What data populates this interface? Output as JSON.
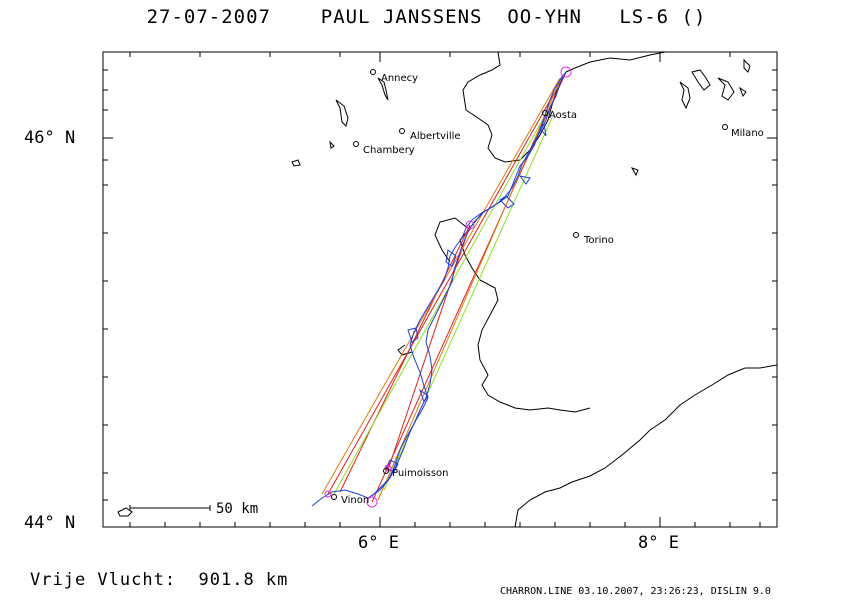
{
  "title": {
    "date": "27-07-2007",
    "pilot": "PAUL JANSSENS",
    "registration": "OO-YHN",
    "glider": "LS-6 ()"
  },
  "axes": {
    "lat_labels": [
      "46° N",
      "44° N"
    ],
    "lon_labels": [
      "6° E",
      "8° E"
    ]
  },
  "scale_bar": {
    "label": "50 km"
  },
  "cities": [
    {
      "name": "Annecy"
    },
    {
      "name": "Albertville"
    },
    {
      "name": "Chambery"
    },
    {
      "name": "Aosta"
    },
    {
      "name": "Milano"
    },
    {
      "name": "Torino"
    },
    {
      "name": "Puimoisson"
    },
    {
      "name": "Vinon"
    }
  ],
  "footer": {
    "distance": "Vrije Vlucht:  901.8 km",
    "info": "CHARRON.LINE 03.10.2007, 23:26:23, DISLIN 9.0"
  },
  "colors": {
    "track": "#1f3fd6",
    "leg_red": "#e0201c",
    "leg_orange": "#e07a10",
    "leg_green": "#8ee020",
    "turnpoint": "#e030e0",
    "border": "#000000"
  }
}
